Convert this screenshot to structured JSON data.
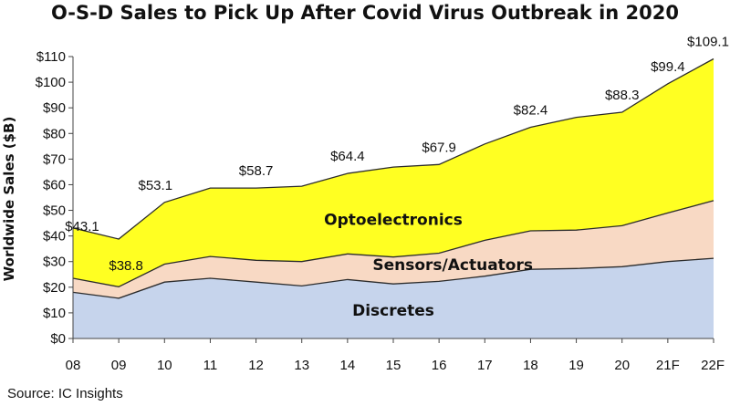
{
  "chart_data": {
    "type": "area",
    "title": "O-S-D Sales to Pick Up After Covid Virus Outbreak in 2020",
    "ylabel": "Worldwide Sales ($B)",
    "xlabel": "",
    "source": "Source: IC Insights",
    "categories": [
      "08",
      "09",
      "10",
      "11",
      "12",
      "13",
      "14",
      "15",
      "16",
      "17",
      "18",
      "19",
      "20",
      "21F",
      "22F"
    ],
    "ylim": [
      0,
      110
    ],
    "yticks": [
      "$0",
      "$10",
      "$20",
      "$30",
      "$40",
      "$50",
      "$60",
      "$70",
      "$80",
      "$90",
      "$100",
      "$110"
    ],
    "stacked": true,
    "series": [
      {
        "name": "Discretes",
        "color": "#c6d4ec",
        "values": [
          18.0,
          15.7,
          22.0,
          23.5,
          22.0,
          20.5,
          23.0,
          21.3,
          22.3,
          24.3,
          27.0,
          27.3,
          28.0,
          30.0,
          31.3
        ]
      },
      {
        "name": "Sensors/Actuators",
        "color": "#f8d9c4",
        "values": [
          5.5,
          4.5,
          7.0,
          8.5,
          8.5,
          9.5,
          10.0,
          10.5,
          11.0,
          14.0,
          15.0,
          15.0,
          16.0,
          19.0,
          22.5
        ]
      },
      {
        "name": "Optoelectronics",
        "color": "#ffff22",
        "values": [
          19.6,
          18.6,
          24.1,
          26.7,
          28.2,
          29.4,
          31.4,
          35.1,
          34.6,
          37.6,
          40.4,
          44.0,
          44.3,
          50.4,
          55.3
        ]
      }
    ],
    "totals": [
      43.1,
      38.8,
      53.1,
      58.0,
      58.7,
      59.4,
      64.4,
      66.9,
      67.9,
      75.9,
      82.4,
      86.3,
      88.3,
      99.4,
      109.1
    ],
    "data_labels": [
      {
        "index": 0,
        "text": "$43.1"
      },
      {
        "index": 1,
        "text": "$38.8"
      },
      {
        "index": 2,
        "text": "$53.1"
      },
      {
        "index": 4,
        "text": "$58.7"
      },
      {
        "index": 6,
        "text": "$64.4"
      },
      {
        "index": 8,
        "text": "$67.9"
      },
      {
        "index": 10,
        "text": "$82.4"
      },
      {
        "index": 12,
        "text": "$88.3"
      },
      {
        "index": 13,
        "text": "$99.4"
      },
      {
        "index": 14,
        "text": "$109.1"
      }
    ],
    "grid": false,
    "legend": "none"
  }
}
